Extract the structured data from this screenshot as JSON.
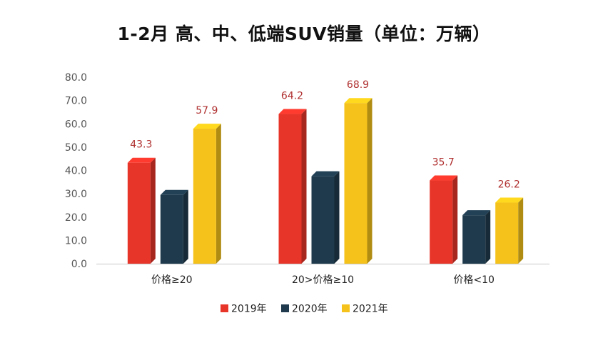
{
  "chart_data": {
    "type": "bar",
    "title": "1-2月 高、中、低端SUV销量（单位：万辆）",
    "categories": [
      "价格≥20",
      "20>价格≥10",
      "价格<10"
    ],
    "series": [
      {
        "name": "2019年",
        "values": [
          43.3,
          64.2,
          35.7
        ],
        "color": "#e8352a",
        "labeled": [
          true,
          true,
          true
        ]
      },
      {
        "name": "2020年",
        "values": [
          29.5,
          37.5,
          20.8
        ],
        "color": "#1f3a4d",
        "labeled": [
          false,
          false,
          false
        ]
      },
      {
        "name": "2021年",
        "values": [
          57.9,
          68.9,
          26.2
        ],
        "color": "#f5c21b",
        "labeled": [
          true,
          true,
          true
        ]
      }
    ],
    "yticks": [
      "0.0",
      "10.0",
      "20.0",
      "30.0",
      "40.0",
      "50.0",
      "60.0",
      "70.0",
      "80.0"
    ],
    "ylim": [
      0,
      80
    ],
    "legend_position": "bottom",
    "grid": false
  }
}
